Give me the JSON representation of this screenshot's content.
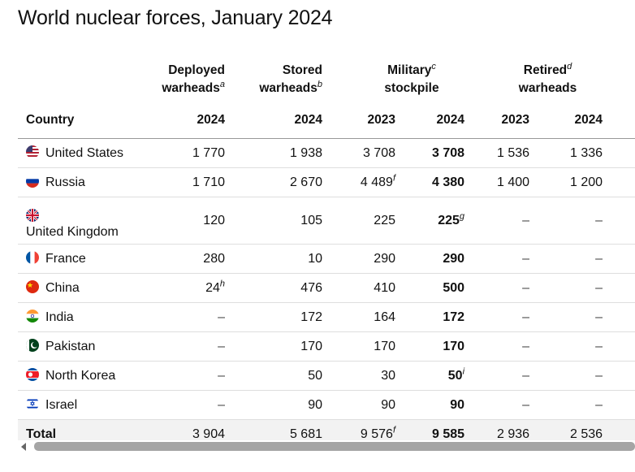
{
  "title": "World nuclear forces, January 2024",
  "headers": {
    "deployed": {
      "line1": "Deployed",
      "line2": "warheads",
      "note": "a"
    },
    "stored": {
      "line1": "Stored",
      "line2": "warheads",
      "note": "b"
    },
    "military": {
      "line1": "Military",
      "line2": "stockpile",
      "note": "c"
    },
    "retired": {
      "line1": "Retired",
      "line2": "warheads",
      "note": "d"
    },
    "country": "Country",
    "y2024": "2024",
    "y2023": "2023"
  },
  "rows": [
    {
      "country": "United States",
      "flag": "us-flag-icon",
      "deployed": "1 770",
      "stored": "1 938",
      "mil2023": "3 708",
      "mil2023_note": "",
      "mil2024": "3 708",
      "mil2024_note": "",
      "ret2023": "1 536",
      "ret2024": "1 336"
    },
    {
      "country": "Russia",
      "flag": "russia-flag-icon",
      "deployed": "1 710",
      "stored": "2 670",
      "mil2023": "4 489",
      "mil2023_note": "f",
      "mil2024": "4 380",
      "mil2024_note": "",
      "ret2023": "1 400",
      "ret2024": "1 200"
    },
    {
      "country": "United Kingdom",
      "flag": "uk-flag-icon",
      "deployed": "120",
      "stored": "105",
      "mil2023": "225",
      "mil2023_note": "",
      "mil2024": "225",
      "mil2024_note": "g",
      "ret2023": "–",
      "ret2024": "–"
    },
    {
      "country": "France",
      "flag": "france-flag-icon",
      "deployed": "280",
      "stored": "10",
      "mil2023": "290",
      "mil2023_note": "",
      "mil2024": "290",
      "mil2024_note": "",
      "ret2023": "–",
      "ret2024": "–"
    },
    {
      "country": "China",
      "flag": "china-flag-icon",
      "deployed": "24",
      "deployed_note": "h",
      "stored": "476",
      "mil2023": "410",
      "mil2023_note": "",
      "mil2024": "500",
      "mil2024_note": "",
      "ret2023": "–",
      "ret2024": "–"
    },
    {
      "country": "India",
      "flag": "india-flag-icon",
      "deployed": "–",
      "stored": "172",
      "mil2023": "164",
      "mil2023_note": "",
      "mil2024": "172",
      "mil2024_note": "",
      "ret2023": "–",
      "ret2024": "–"
    },
    {
      "country": "Pakistan",
      "flag": "pakistan-flag-icon",
      "deployed": "–",
      "stored": "170",
      "mil2023": "170",
      "mil2023_note": "",
      "mil2024": "170",
      "mil2024_note": "",
      "ret2023": "–",
      "ret2024": "–"
    },
    {
      "country": "North Korea",
      "flag": "north-korea-flag-icon",
      "deployed": "–",
      "stored": "50",
      "mil2023": "30",
      "mil2023_note": "",
      "mil2024": "50",
      "mil2024_note": "i",
      "ret2023": "–",
      "ret2024": "–"
    },
    {
      "country": "Israel",
      "flag": "israel-flag-icon",
      "deployed": "–",
      "stored": "90",
      "mil2023": "90",
      "mil2023_note": "",
      "mil2024": "90",
      "mil2024_note": "",
      "ret2023": "–",
      "ret2024": "–"
    }
  ],
  "total": {
    "label": "Total",
    "deployed": "3 904",
    "stored": "5 681",
    "mil2023": "9 576",
    "mil2023_note": "f",
    "mil2024": "9 585",
    "ret2023": "2 936",
    "ret2024": "2 536"
  }
}
